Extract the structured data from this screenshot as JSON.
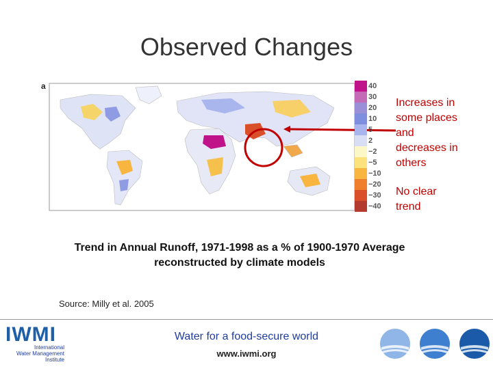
{
  "slide": {
    "title": "Observed Changes"
  },
  "map": {
    "panel_letter": "a",
    "legend_labels": [
      "40",
      "30",
      "20",
      "10",
      "5",
      "2",
      "−2",
      "−5",
      "−10",
      "−20",
      "−30",
      "−40"
    ],
    "legend_colors": [
      "#c0138a",
      "#c46bb8",
      "#9a8fd6",
      "#7f8fe0",
      "#a9b6ee",
      "#d9def7",
      "#fbf7c6",
      "#fce27c",
      "#f8b641",
      "#ef7f2c",
      "#d84f2a",
      "#b33a2e"
    ]
  },
  "annotations": {
    "increase_line1": "Increases in",
    "increase_line2": "some places",
    "increase_line3": "and",
    "increase_line4": "decreases in",
    "increase_line5": "others",
    "no_trend_line1": "No clear",
    "no_trend_line2": "trend"
  },
  "caption": {
    "line1": "Trend in Annual Runoff, 1971-1998 as a % of 1900-1970 Average",
    "line2": "reconstructed by climate models"
  },
  "source": "Source:  Milly et al. 2005",
  "footer": {
    "logo_text": "IWMI",
    "logo_sub1": "International",
    "logo_sub2": "Water Management",
    "logo_sub3": "Institute",
    "tagline": "Water for a food-secure world",
    "website": "www.iwmi.org"
  },
  "colors": {
    "accent_red": "#c00000",
    "footer_blue": "#1f3c9e"
  }
}
